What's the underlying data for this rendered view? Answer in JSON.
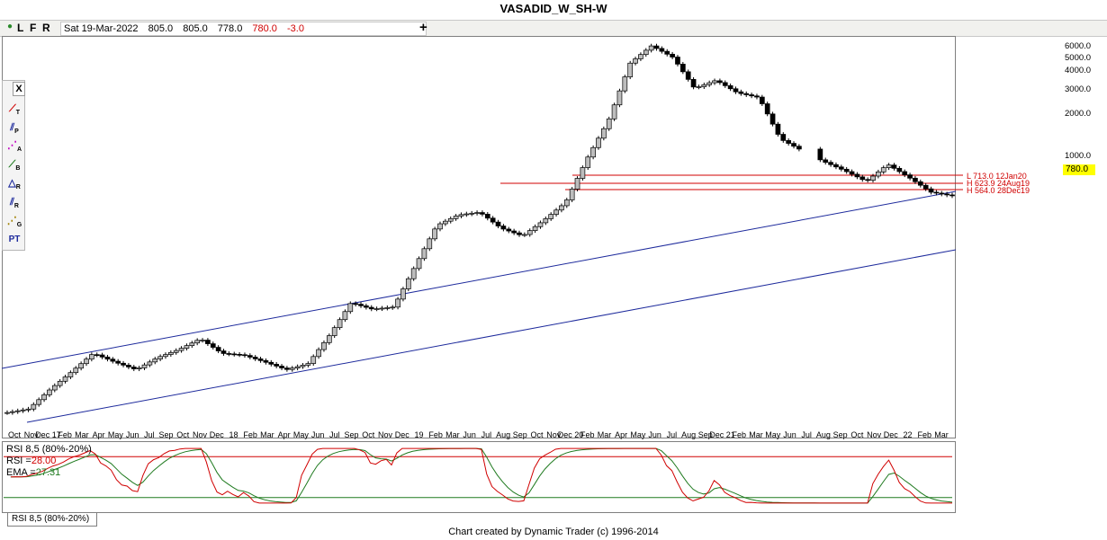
{
  "title": "VASADID_W_SH-W",
  "toolbar": {
    "modes": [
      {
        "label": "L",
        "color": "#1f7a1f"
      },
      {
        "label": "F",
        "color": "#a00000"
      },
      {
        "label": "R",
        "color": "#1d2a9c"
      }
    ],
    "bar_info": {
      "date": "Sat 19-Mar-2022",
      "open": "805.0",
      "high": "805.0",
      "low": "778.0",
      "close": "780.0",
      "change": "-3.0"
    }
  },
  "tools": [
    {
      "name": "close-tool",
      "glyph": "X"
    },
    {
      "name": "trendline-tool",
      "glyph": "T"
    },
    {
      "name": "parallel-tool",
      "glyph": "P"
    },
    {
      "name": "andrews-tool",
      "glyph": "A"
    },
    {
      "name": "b-tool",
      "glyph": "B"
    },
    {
      "name": "r-tool",
      "glyph": "R"
    },
    {
      "name": "r2-tool",
      "glyph": "R"
    },
    {
      "name": "gann-tool",
      "glyph": "G"
    },
    {
      "name": "pt-tool",
      "glyph": "PT"
    }
  ],
  "price_scale": [
    "6000.0",
    "5000.0",
    "4000.0",
    "3000.0",
    "2000.0",
    "1000.0"
  ],
  "last_price": "780.0",
  "levels": [
    {
      "label": "L 713.0 12Jan20",
      "color": "#d00000"
    },
    {
      "label": "H 623.9 24Aug19",
      "color": "#d00000"
    },
    {
      "label": "H 564.0 28Dec19",
      "color": "#d00000"
    }
  ],
  "rsi": {
    "title": "RSI 8,5 (80%-20%)",
    "rsi_label": "RSI",
    "rsi_value": "28.00",
    "ema_label": "EMA",
    "ema_value": "27.31",
    "tab_label": "RSI 8,5 (80%-20%)"
  },
  "footer": "Chart created by Dynamic Trader  (c)  1996-2014",
  "chart_data": {
    "type": "candlestick",
    "x_tick_labels": [
      "Oct",
      "Nov",
      "Dec 17",
      "Feb",
      "Mar",
      "Apr",
      "May",
      "Jun",
      "Jul",
      "Sep",
      "Oct",
      "Nov",
      "Dec",
      "18",
      "Feb",
      "Mar",
      "Apr",
      "May",
      "Jun",
      "Jul",
      "Sep",
      "Oct",
      "Nov",
      "Dec",
      "19",
      "Feb",
      "Mar",
      "Jun",
      "Jul",
      "Aug",
      "Sep",
      "Oct",
      "Nov",
      "Dec 20",
      "Feb",
      "Mar",
      "Apr",
      "May",
      "Jun",
      "Jul",
      "Aug",
      "Sep",
      "Dec 21",
      "Feb",
      "Mar",
      "May",
      "Jun",
      "Jul",
      "Aug",
      "Sep",
      "Oct",
      "Nov",
      "Dec",
      "22",
      "Feb",
      "Mar"
    ],
    "y_scale": "log",
    "series": [
      {
        "name": "price",
        "values": [
          40,
          42,
          55,
          70,
          90,
          80,
          72,
          85,
          95,
          110,
          90,
          88,
          80,
          72,
          78,
          115,
          180,
          165,
          170,
          300,
          520,
          600,
          623,
          500,
          450,
          560,
          713,
          1300,
          2200,
          4800,
          6100,
          5200,
          3400,
          3800,
          3200,
          3000,
          1700,
          1450,
          1250,
          1100,
          950,
          1200,
          1000,
          820,
          780
        ]
      }
    ],
    "rsi_levels": [
      80,
      20
    ],
    "rsi_last": 28.0,
    "ema_last": 27.31
  },
  "colors": {
    "up_candle": "#bdbdbd",
    "down_candle": "#000000",
    "channel": "#1d2a9c",
    "level_lines": "#d00000",
    "rsi_line": "#d00000",
    "ema_line": "#1f7a1f",
    "highlight": "#ffff00"
  }
}
